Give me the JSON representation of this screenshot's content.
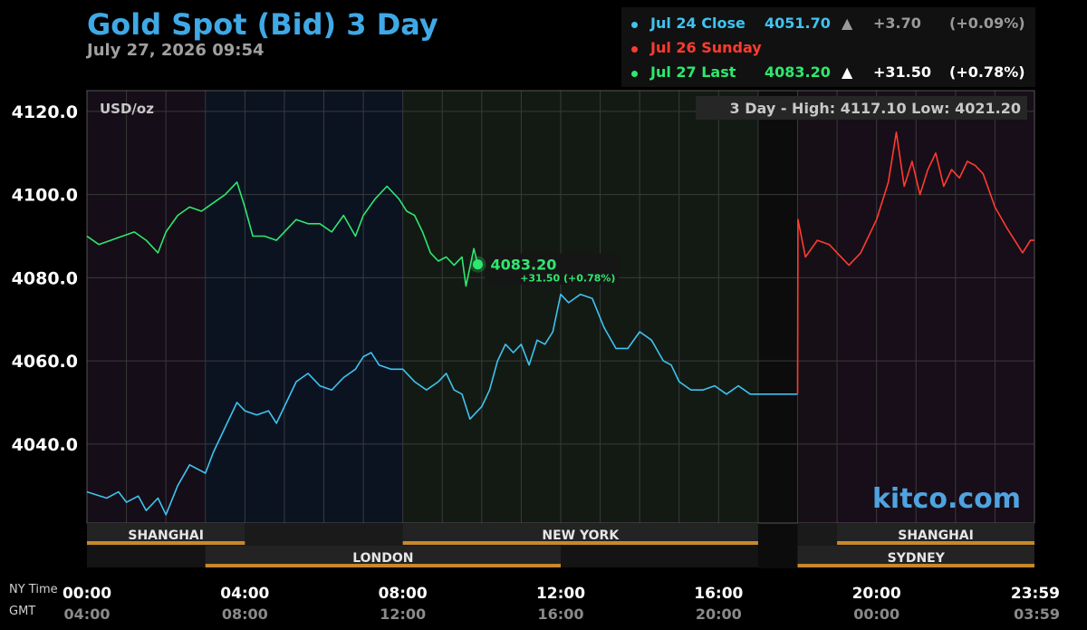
{
  "header": {
    "title": "Gold Spot (Bid) 3 Day",
    "timestamp": "July 27, 2026 09:54"
  },
  "legend": [
    {
      "name": "Jul 24 Close",
      "price": "4051.70",
      "arrow": "▲",
      "change": "+3.70",
      "percent": "(+0.09%)",
      "color": "#3fc3f0",
      "price_color": "#3fc3f0",
      "change_color": "#9a9a9a"
    },
    {
      "name": "Jul 26 Sunday",
      "price": "",
      "arrow": "",
      "change": "",
      "percent": "",
      "color": "#ff3b30",
      "price_color": "#ff3b30",
      "change_color": "#ffffff"
    },
    {
      "name": "Jul 27 Last",
      "price": "4083.20",
      "arrow": "▲",
      "change": "+31.50",
      "percent": "(+0.78%)",
      "color": "#2ee86e",
      "price_color": "#2ee86e",
      "change_color": "#ffffff"
    }
  ],
  "brand": "kitco.com",
  "colors": {
    "accent": "#3fa9e6",
    "jul24": "#3fc3f0",
    "sunday": "#ff3b30",
    "today": "#2ee86e",
    "session_bar": "#c8892a"
  },
  "chart_data": {
    "type": "line",
    "unit_label": "USD/oz",
    "stats": "3 Day - High: 4117.10  Low: 4021.20",
    "y_ticks": [
      "4120.0",
      "4100.0",
      "4080.0",
      "4060.0",
      "4040.0"
    ],
    "ylim": [
      4021,
      4125
    ],
    "xlim_hours": [
      0,
      24
    ],
    "x_axis_label_ny": "NY Time",
    "x_axis_label_gmt": "GMT",
    "x_ticks_ny": [
      "00:00",
      "04:00",
      "08:00",
      "12:00",
      "16:00",
      "20:00",
      "23:59"
    ],
    "x_ticks_gmt": [
      "04:00",
      "08:00",
      "12:00",
      "16:00",
      "20:00",
      "00:00",
      "03:59"
    ],
    "last_marker": {
      "hour": 9.9,
      "value": 4083.2,
      "label": "4083.20",
      "change_label": "+31.50 (+0.78%)"
    },
    "sessions": [
      {
        "name": "SHANGHAI",
        "row": 0,
        "start": 0,
        "end": 4
      },
      {
        "name": "NEW YORK",
        "row": 0,
        "start": 8,
        "end": 17
      },
      {
        "name": "SHANGHAI",
        "row": 0,
        "start": 19,
        "end": 24
      },
      {
        "name": "LONDON",
        "row": 1,
        "start": 3,
        "end": 12
      },
      {
        "name": "SYDNEY",
        "row": 1,
        "start": 18,
        "end": 24
      }
    ],
    "series": [
      {
        "name": "Jul 24 Close",
        "color": "#3fc3f0",
        "points": [
          [
            0,
            4028.5
          ],
          [
            0.5,
            4027
          ],
          [
            0.8,
            4028.5
          ],
          [
            1,
            4026
          ],
          [
            1.3,
            4027.5
          ],
          [
            1.5,
            4024
          ],
          [
            1.8,
            4027
          ],
          [
            2,
            4023
          ],
          [
            2.3,
            4030
          ],
          [
            2.6,
            4035
          ],
          [
            3,
            4033
          ],
          [
            3.2,
            4038
          ],
          [
            3.5,
            4044
          ],
          [
            3.8,
            4050
          ],
          [
            4,
            4048
          ],
          [
            4.3,
            4047
          ],
          [
            4.6,
            4048
          ],
          [
            4.8,
            4045
          ],
          [
            5,
            4049
          ],
          [
            5.3,
            4055
          ],
          [
            5.6,
            4057
          ],
          [
            5.9,
            4054
          ],
          [
            6.2,
            4053
          ],
          [
            6.5,
            4056
          ],
          [
            6.8,
            4058
          ],
          [
            7,
            4061
          ],
          [
            7.2,
            4062
          ],
          [
            7.4,
            4059
          ],
          [
            7.7,
            4058
          ],
          [
            8,
            4058
          ],
          [
            8.3,
            4055
          ],
          [
            8.6,
            4053
          ],
          [
            8.9,
            4055
          ],
          [
            9.1,
            4057
          ],
          [
            9.3,
            4053
          ],
          [
            9.5,
            4052
          ],
          [
            9.7,
            4046
          ],
          [
            10,
            4049
          ],
          [
            10.2,
            4053
          ],
          [
            10.4,
            4060
          ],
          [
            10.6,
            4064
          ],
          [
            10.8,
            4062
          ],
          [
            11,
            4064
          ],
          [
            11.2,
            4059
          ],
          [
            11.4,
            4065
          ],
          [
            11.6,
            4064
          ],
          [
            11.8,
            4067
          ],
          [
            12,
            4076
          ],
          [
            12.2,
            4074
          ],
          [
            12.5,
            4076
          ],
          [
            12.8,
            4075
          ],
          [
            13.1,
            4068
          ],
          [
            13.4,
            4063
          ],
          [
            13.7,
            4063
          ],
          [
            14,
            4067
          ],
          [
            14.3,
            4065
          ],
          [
            14.6,
            4060
          ],
          [
            14.8,
            4059
          ],
          [
            15,
            4055
          ],
          [
            15.3,
            4053
          ],
          [
            15.6,
            4053
          ],
          [
            15.9,
            4054
          ],
          [
            16.2,
            4052
          ],
          [
            16.5,
            4054
          ],
          [
            16.8,
            4052
          ],
          [
            17,
            4052
          ],
          [
            18,
            4052
          ]
        ]
      },
      {
        "name": "Jul 26 Sunday",
        "color": "#ff3b30",
        "points": [
          [
            18,
            4052
          ],
          [
            18.01,
            4094
          ],
          [
            18.2,
            4085
          ],
          [
            18.5,
            4089
          ],
          [
            18.8,
            4088
          ],
          [
            19,
            4086
          ],
          [
            19.3,
            4083
          ],
          [
            19.6,
            4086
          ],
          [
            20,
            4094
          ],
          [
            20.3,
            4103
          ],
          [
            20.5,
            4115
          ],
          [
            20.7,
            4102
          ],
          [
            20.9,
            4108
          ],
          [
            21.1,
            4100
          ],
          [
            21.3,
            4106
          ],
          [
            21.5,
            4110
          ],
          [
            21.7,
            4102
          ],
          [
            21.9,
            4106
          ],
          [
            22.1,
            4104
          ],
          [
            22.3,
            4108
          ],
          [
            22.5,
            4107
          ],
          [
            22.7,
            4105
          ],
          [
            23,
            4097
          ],
          [
            23.3,
            4092
          ],
          [
            23.5,
            4089
          ],
          [
            23.7,
            4086
          ],
          [
            23.9,
            4089
          ],
          [
            24,
            4089
          ]
        ]
      },
      {
        "name": "Jul 27 Last",
        "color": "#2ee86e",
        "points": [
          [
            0,
            4090
          ],
          [
            0.3,
            4088
          ],
          [
            0.6,
            4089
          ],
          [
            0.9,
            4090
          ],
          [
            1.2,
            4091
          ],
          [
            1.5,
            4089
          ],
          [
            1.8,
            4086
          ],
          [
            2,
            4091
          ],
          [
            2.3,
            4095
          ],
          [
            2.6,
            4097
          ],
          [
            2.9,
            4096
          ],
          [
            3.2,
            4098
          ],
          [
            3.5,
            4100
          ],
          [
            3.8,
            4103
          ],
          [
            4,
            4097
          ],
          [
            4.2,
            4090
          ],
          [
            4.5,
            4090
          ],
          [
            4.8,
            4089
          ],
          [
            5,
            4091
          ],
          [
            5.3,
            4094
          ],
          [
            5.6,
            4093
          ],
          [
            5.9,
            4093
          ],
          [
            6.2,
            4091
          ],
          [
            6.5,
            4095
          ],
          [
            6.8,
            4090
          ],
          [
            7,
            4095
          ],
          [
            7.3,
            4099
          ],
          [
            7.6,
            4102
          ],
          [
            7.9,
            4099
          ],
          [
            8.1,
            4096
          ],
          [
            8.3,
            4095
          ],
          [
            8.5,
            4091
          ],
          [
            8.7,
            4086
          ],
          [
            8.9,
            4084
          ],
          [
            9.1,
            4085
          ],
          [
            9.3,
            4083
          ],
          [
            9.5,
            4085
          ],
          [
            9.6,
            4078
          ],
          [
            9.8,
            4087
          ],
          [
            9.9,
            4083.2
          ]
        ]
      }
    ]
  }
}
